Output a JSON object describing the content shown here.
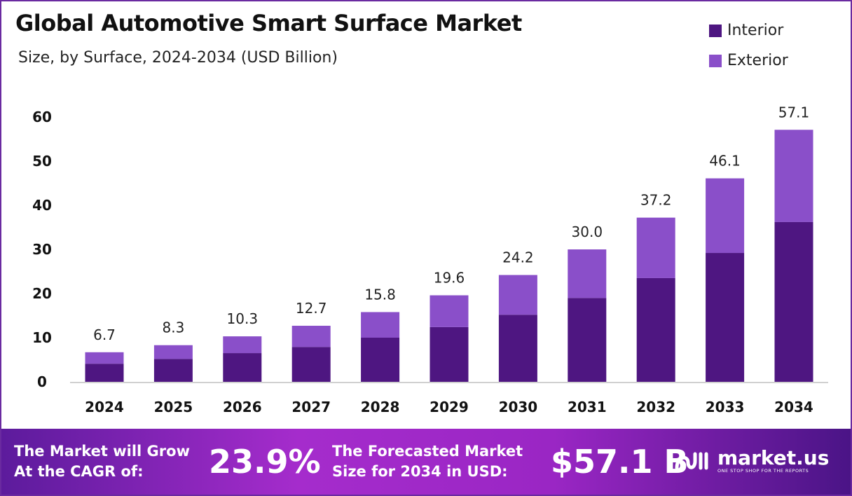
{
  "chart_data": {
    "type": "bar",
    "stacked": true,
    "title": "Global Automotive Smart Surface Market",
    "subtitle": "Size, by Surface, 2024-2034 (USD Billion)",
    "categories": [
      "2024",
      "2025",
      "2026",
      "2027",
      "2028",
      "2029",
      "2030",
      "2031",
      "2032",
      "2033",
      "2034"
    ],
    "series": [
      {
        "name": "Interior",
        "color": "#4e1681",
        "values": [
          4.1,
          5.2,
          6.5,
          7.9,
          10.0,
          12.4,
          15.2,
          19.0,
          23.5,
          29.2,
          36.2
        ]
      },
      {
        "name": "Exterior",
        "color": "#8a4fc9",
        "values": [
          2.6,
          3.1,
          3.8,
          4.8,
          5.8,
          7.2,
          9.0,
          11.0,
          13.7,
          16.9,
          20.9
        ]
      }
    ],
    "totals": [
      "6.7",
      "8.3",
      "10.3",
      "12.7",
      "15.8",
      "19.6",
      "24.2",
      "30.0",
      "37.2",
      "46.1",
      "57.1"
    ],
    "yticks": [
      "0",
      "10",
      "20",
      "30",
      "40",
      "50",
      "60"
    ],
    "ylim": [
      0,
      60
    ],
    "grid": false,
    "legend_position": "top-right"
  },
  "banner": {
    "cagr_label_line1": "The Market will Grow",
    "cagr_label_line2": "At the CAGR of:",
    "cagr_value": "23.9%",
    "forecast_label_line1": "The Forecasted Market",
    "forecast_label_line2": "Size for 2034 in USD:",
    "forecast_value": "$57.1 B",
    "logo_name": "market.us",
    "logo_tagline": "ONE STOP SHOP FOR THE REPORTS"
  }
}
